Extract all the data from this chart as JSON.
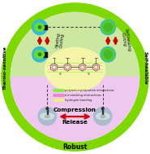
{
  "figsize": [
    1.85,
    1.89
  ],
  "dpi": 100,
  "bg_outer": "#7ed800",
  "bg_light_green": "#cce8a0",
  "bg_yellow": "#f5f5aa",
  "bg_pink": "#eec8ee",
  "title_bottom": "Robust",
  "title_left": "Thermo-sensitive",
  "title_right": "Self-healable",
  "arrow_color": "#cc0000",
  "dashed_color": "#444444",
  "legend_items": [
    {
      "color": "#88ee44",
      "text": "polyanion-polycation interactions"
    },
    {
      "color": "#ee88cc",
      "text": "π-π stacking interactions"
    },
    {
      "color": "#eeee88",
      "text": "hydrogen bonding"
    }
  ]
}
